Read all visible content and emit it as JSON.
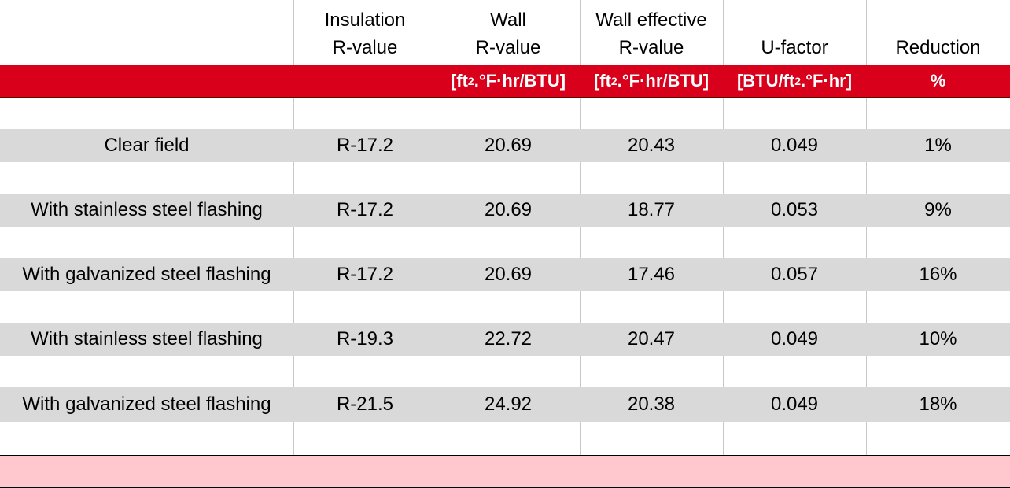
{
  "table": {
    "headers": [
      [
        "Insulation",
        "R-value"
      ],
      [
        "Wall",
        "R-value"
      ],
      [
        "Wall effective",
        "R-value"
      ],
      [
        "U-factor"
      ],
      [
        "Reduction"
      ]
    ],
    "units": [
      {
        "pre": "[ft",
        "sup": "2",
        "post": ".°F·hr/BTU]"
      },
      {
        "pre": "[ft",
        "sup": "2",
        "post": ".°F·hr/BTU]"
      },
      {
        "pre": "[BTU/ft",
        "sup": "2",
        "post": ".°F·hr]"
      },
      "%"
    ],
    "rows": [
      [
        "Clear field",
        "R-17.2",
        "20.69",
        "20.43",
        "0.049",
        "1%"
      ],
      [
        "With stainless steel flashing",
        "R-17.2",
        "20.69",
        "18.77",
        "0.053",
        "9%"
      ],
      [
        "With galvanized steel flashing",
        "R-17.2",
        "20.69",
        "17.46",
        "0.057",
        "16%"
      ],
      [
        "With stainless steel flashing",
        "R-19.3",
        "22.72",
        "20.47",
        "0.049",
        "10%"
      ],
      [
        "With galvanized steel flashing",
        "R-21.5",
        "24.92",
        "20.38",
        "0.049",
        "18%"
      ]
    ]
  }
}
